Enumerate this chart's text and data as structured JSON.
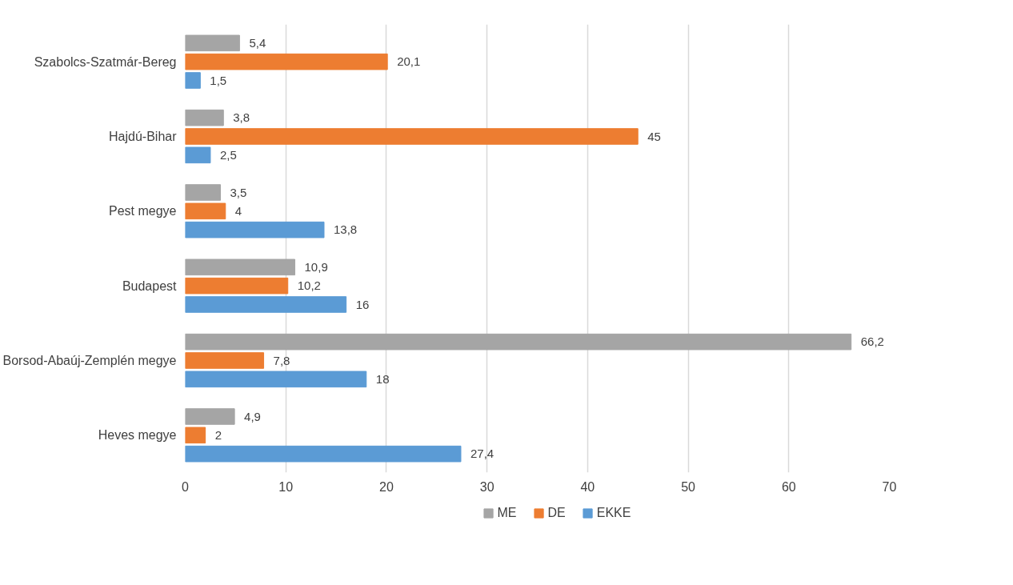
{
  "chart_data": {
    "type": "bar",
    "orientation": "horizontal",
    "categories": [
      "Szabolcs-Szatmár-Bereg",
      "Hajdú-Bihar",
      "Pest megye",
      "Budapest",
      "Borsod-Abaúj-Zemplén megye",
      "Heves megye"
    ],
    "series": [
      {
        "name": "ME",
        "color": "#a5a5a5",
        "values": [
          5.4,
          3.8,
          3.5,
          10.9,
          66.2,
          4.9
        ],
        "value_labels": [
          "5,4",
          "3,8",
          "3,5",
          "10,9",
          "66,2",
          "4,9"
        ]
      },
      {
        "name": "DE",
        "color": "#ed7d31",
        "values": [
          20.1,
          45,
          4,
          10.2,
          7.8,
          2
        ],
        "value_labels": [
          "20,1",
          "45",
          "4",
          "10,2",
          "7,8",
          "2"
        ]
      },
      {
        "name": "EKKE",
        "color": "#5b9bd5",
        "values": [
          1.5,
          2.5,
          13.8,
          16,
          18,
          27.4
        ],
        "value_labels": [
          "1,5",
          "2,5",
          "13,8",
          "16",
          "18",
          "27,4"
        ]
      }
    ],
    "xlim": [
      0,
      70
    ],
    "xticks": [
      0,
      10,
      20,
      30,
      40,
      50,
      60,
      70
    ],
    "grid": "x",
    "legend": "bottom"
  }
}
